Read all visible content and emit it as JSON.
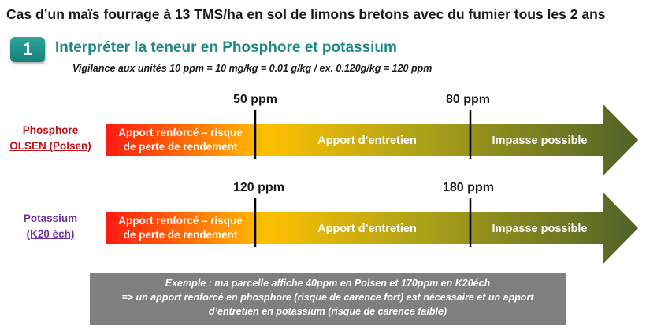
{
  "title": "Cas d’un maïs fourrage à 13 TMS/ha en sol de limons bretons avec du fumier tous les 2 ans",
  "step": {
    "number": "1",
    "heading": "Interpréter la teneur en Phosphore et potassium"
  },
  "vigilance": "Vigilance aux unités 10 ppm = 10 mg/kg = 0.01 g/kg / ex. 0.120g/kg =  120 ppm",
  "rows": [
    {
      "label_line1": "Phosphore",
      "label_line2": "OLSEN (Polsen)",
      "threshold_low": "50 ppm",
      "threshold_high": "80 ppm",
      "zone1_line1": "Apport renforcé – risque",
      "zone1_line2": "de perte de rendement",
      "zone2": "Apport d’entretien",
      "zone3": "Impasse possible"
    },
    {
      "label_line1": "Potassium",
      "label_line2": "(K20 éch)",
      "threshold_low": "120 ppm",
      "threshold_high": "180 ppm",
      "zone1_line1": "Apport renforcé – risque",
      "zone1_line2": "de perte de rendement",
      "zone2": "Apport d’entretien",
      "zone3": "Impasse possible"
    }
  ],
  "example": {
    "line1": "Exemple : ma parcelle affiche 40ppm en Polsen et 170ppm en K20éch",
    "line2": "=> un apport renforcé en phosphore (risque de carence fort) est nécessaire et un apport",
    "line3": "d’entretien en potassium (risque de carence faible)"
  },
  "colors": {
    "badge": "#1f9990",
    "heading": "#1f8a82",
    "phosphore_label": "#c0141b",
    "potassium_label": "#7030a0",
    "gradient_start": "#ff1a10",
    "gradient_mid": "#ffc000",
    "gradient_end": "#4f6228",
    "example_box": "#7f7f7f"
  }
}
